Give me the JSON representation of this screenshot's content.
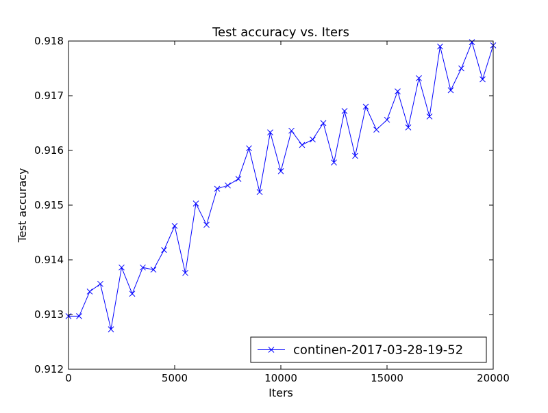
{
  "chart_data": {
    "type": "line",
    "title": "Test accuracy  vs. Iters",
    "xlabel": "Iters",
    "ylabel": "Test accuracy",
    "xlim": [
      0,
      20000
    ],
    "ylim": [
      0.912,
      0.918
    ],
    "xticks": [
      "0",
      "5000",
      "10000",
      "15000",
      "20000"
    ],
    "yticks": [
      "0.912",
      "0.913",
      "0.914",
      "0.915",
      "0.916",
      "0.917",
      "0.918"
    ],
    "xtick_values": [
      0,
      5000,
      10000,
      15000,
      20000
    ],
    "ytick_values": [
      0.912,
      0.913,
      0.914,
      0.915,
      0.916,
      0.917,
      0.918
    ],
    "grid": false,
    "legend_position": "lower-right",
    "series": [
      {
        "name": "continen-2017-03-28-19-52",
        "color": "#0000ff",
        "marker": "x",
        "x": [
          0,
          500,
          1000,
          1500,
          2000,
          2500,
          3000,
          3500,
          4000,
          4500,
          5000,
          5500,
          6000,
          6500,
          7000,
          7500,
          8000,
          8500,
          9000,
          9500,
          10000,
          10500,
          11000,
          11500,
          12000,
          12500,
          13000,
          13500,
          14000,
          14500,
          15000,
          15500,
          16000,
          16500,
          17000,
          17500,
          18000,
          18500,
          19000,
          19500,
          20000
        ],
        "y": [
          0.91297,
          0.91297,
          0.91342,
          0.91356,
          0.91273,
          0.91386,
          0.91338,
          0.91386,
          0.91382,
          0.91418,
          0.91462,
          0.91376,
          0.91503,
          0.91464,
          0.9153,
          0.91536,
          0.91548,
          0.91604,
          0.91524,
          0.91633,
          0.91562,
          0.91636,
          0.9161,
          0.9162,
          0.9165,
          0.91578,
          0.91672,
          0.9159,
          0.9168,
          0.91638,
          0.91656,
          0.91708,
          0.91642,
          0.91732,
          0.91662,
          0.9179,
          0.9171,
          0.9175,
          0.91798,
          0.9173,
          0.91792
        ]
      }
    ]
  }
}
